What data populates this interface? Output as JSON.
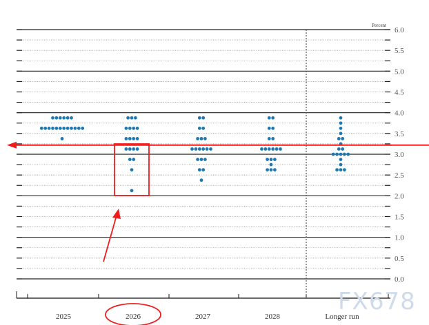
{
  "chart_data": {
    "type": "scatter",
    "subtype": "dot-plot",
    "ylabel": "Percent",
    "ylim": [
      0,
      6.0
    ],
    "yticks": [
      "6.0",
      "5.5",
      "5.0",
      "4.5",
      "4.0",
      "3.5",
      "3.0",
      "2.5",
      "2.0",
      "1.5",
      "1.0",
      "0.5",
      "0.0"
    ],
    "categories": [
      "2025",
      "2026",
      "2027",
      "2028",
      "Longer run"
    ],
    "grid": true,
    "dot_color": "#1f78b0",
    "columns": [
      {
        "category": "2025",
        "dots": [
          {
            "value": 3.875,
            "count": 6
          },
          {
            "value": 3.625,
            "count": 12
          },
          {
            "value": 3.375,
            "count": 1
          }
        ]
      },
      {
        "category": "2026",
        "dots": [
          {
            "value": 3.875,
            "count": 3
          },
          {
            "value": 3.625,
            "count": 4
          },
          {
            "value": 3.375,
            "count": 4
          },
          {
            "value": 3.125,
            "count": 4
          },
          {
            "value": 2.875,
            "count": 2
          },
          {
            "value": 2.625,
            "count": 1
          },
          {
            "value": 2.125,
            "count": 1
          }
        ]
      },
      {
        "category": "2027",
        "dots": [
          {
            "value": 3.875,
            "count": 2
          },
          {
            "value": 3.625,
            "count": 2
          },
          {
            "value": 3.375,
            "count": 3
          },
          {
            "value": 3.125,
            "count": 6
          },
          {
            "value": 2.875,
            "count": 3
          },
          {
            "value": 2.625,
            "count": 2
          },
          {
            "value": 2.375,
            "count": 1
          }
        ]
      },
      {
        "category": "2028",
        "dots": [
          {
            "value": 3.875,
            "count": 2
          },
          {
            "value": 3.625,
            "count": 2
          },
          {
            "value": 3.375,
            "count": 2
          },
          {
            "value": 3.125,
            "count": 6
          },
          {
            "value": 2.875,
            "count": 3
          },
          {
            "value": 2.75,
            "count": 1
          },
          {
            "value": 2.625,
            "count": 3
          }
        ]
      },
      {
        "category": "Longer run",
        "dots": [
          {
            "value": 3.875,
            "count": 1
          },
          {
            "value": 3.75,
            "count": 1
          },
          {
            "value": 3.625,
            "count": 1
          },
          {
            "value": 3.5,
            "count": 1
          },
          {
            "value": 3.375,
            "count": 2
          },
          {
            "value": 3.25,
            "count": 1
          },
          {
            "value": 3.125,
            "count": 2
          },
          {
            "value": 3.0,
            "count": 5
          },
          {
            "value": 2.875,
            "count": 1
          },
          {
            "value": 2.75,
            "count": 1
          },
          {
            "value": 2.625,
            "count": 3
          }
        ]
      }
    ],
    "annotations": {
      "color": "#ee1c1c",
      "highlight_line_value": 3.22,
      "highlight_box_category": "2026",
      "circled_label": "2026"
    }
  },
  "watermark": "FX678"
}
